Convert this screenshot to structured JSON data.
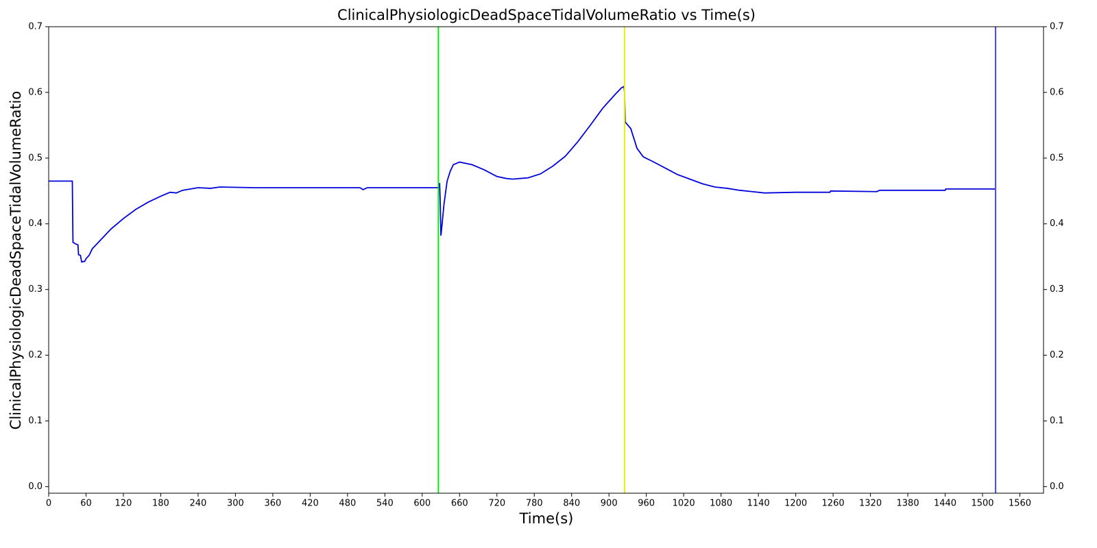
{
  "chart_data": {
    "type": "line",
    "title": "ClinicalPhysiologicDeadSpaceTidalVolumeRatio vs Time(s)",
    "x_label": "Time(s)",
    "y_label": "ClinicalPhysiologicDeadSpaceTidalVolumeRatio",
    "xlim": [
      0,
      1598
    ],
    "ylim": [
      -0.01,
      0.7
    ],
    "xticks": [
      0,
      60,
      120,
      180,
      240,
      300,
      360,
      420,
      480,
      540,
      600,
      660,
      720,
      780,
      840,
      900,
      960,
      1020,
      1080,
      1140,
      1200,
      1260,
      1320,
      1380,
      1440,
      1500,
      1560
    ],
    "yticks": [
      {
        "value": 0,
        "label": "0.0"
      },
      0.1,
      0.2,
      0.3,
      0.4,
      0.5,
      0.6,
      0.7
    ],
    "right_axis": true,
    "vlines": [
      {
        "x": 626,
        "color": "#00ee00"
      },
      {
        "x": 925,
        "color": "#eeee00"
      },
      {
        "x": 1521,
        "color": "#4444ff"
      }
    ],
    "series": [
      {
        "color": "#0000dd",
        "x": [
          0,
          38,
          39,
          42,
          47,
          48,
          51,
          53,
          58,
          60,
          65,
          70,
          80,
          90,
          100,
          120,
          140,
          160,
          180,
          195,
          205,
          215,
          240,
          260,
          275,
          330,
          500,
          505,
          512,
          627,
          628,
          629,
          630,
          632,
          635,
          640,
          645,
          650,
          660,
          680,
          700,
          720,
          735,
          745,
          770,
          790,
          810,
          830,
          850,
          870,
          890,
          910,
          920,
          924,
          925,
          926,
          935,
          940,
          945,
          955,
          970,
          990,
          1010,
          1030,
          1050,
          1070,
          1090,
          1110,
          1130,
          1150,
          1200,
          1255,
          1256,
          1330,
          1335,
          1440,
          1441,
          1520
        ],
        "values": [
          0.465,
          0.465,
          0.372,
          0.37,
          0.368,
          0.353,
          0.352,
          0.342,
          0.343,
          0.347,
          0.352,
          0.362,
          0.372,
          0.382,
          0.392,
          0.408,
          0.422,
          0.433,
          0.442,
          0.448,
          0.447,
          0.451,
          0.455,
          0.454,
          0.456,
          0.455,
          0.455,
          0.452,
          0.455,
          0.455,
          0.462,
          0.43,
          0.382,
          0.4,
          0.43,
          0.465,
          0.48,
          0.49,
          0.494,
          0.49,
          0.482,
          0.472,
          0.469,
          0.468,
          0.47,
          0.476,
          0.488,
          0.503,
          0.525,
          0.55,
          0.576,
          0.597,
          0.607,
          0.609,
          0.6,
          0.555,
          0.545,
          0.53,
          0.515,
          0.502,
          0.495,
          0.485,
          0.475,
          0.468,
          0.461,
          0.456,
          0.454,
          0.451,
          0.449,
          0.447,
          0.448,
          0.448,
          0.45,
          0.449,
          0.451,
          0.451,
          0.453,
          0.453
        ]
      }
    ]
  }
}
